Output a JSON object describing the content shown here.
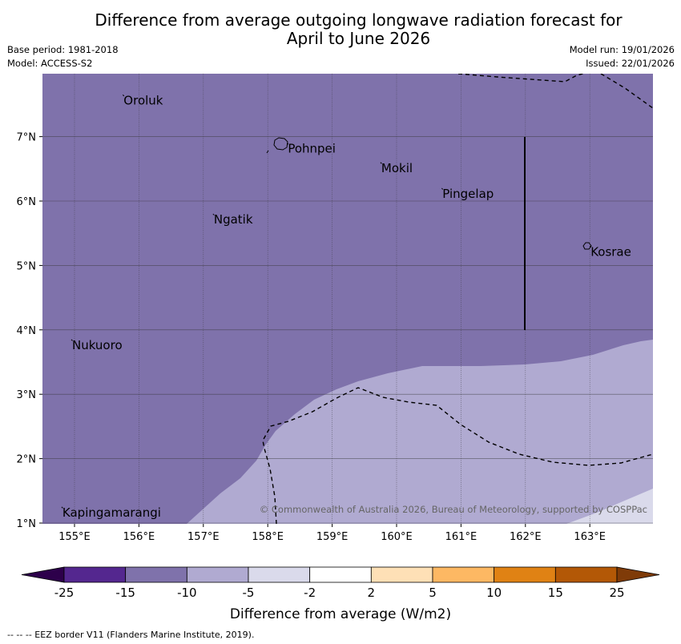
{
  "title": {
    "line1": "Difference from average outgoing longwave radiation forecast for",
    "line2": "April to June 2026"
  },
  "meta": {
    "base_period": "Base period: 1981-2018",
    "model": "Model: ACCESS-S2",
    "model_run": "Model run: 19/01/2026",
    "issued": "Issued: 22/01/2026"
  },
  "map": {
    "lon_ticks": [
      {
        "value": 155,
        "label": "155°E"
      },
      {
        "value": 156,
        "label": "156°E"
      },
      {
        "value": 157,
        "label": "157°E"
      },
      {
        "value": 158,
        "label": "158°E"
      },
      {
        "value": 159,
        "label": "159°E"
      },
      {
        "value": 160,
        "label": "160°E"
      },
      {
        "value": 161,
        "label": "161°E"
      },
      {
        "value": 162,
        "label": "162°E"
      },
      {
        "value": 163,
        "label": "163°E"
      }
    ],
    "lat_ticks": [
      {
        "value": 7,
        "label": "7°N"
      },
      {
        "value": 6,
        "label": "6°N"
      },
      {
        "value": 5,
        "label": "5°N"
      },
      {
        "value": 4,
        "label": "4°N"
      },
      {
        "value": 3,
        "label": "3°N"
      },
      {
        "value": 2,
        "label": "2°N"
      },
      {
        "value": 1,
        "label": "1°N"
      }
    ],
    "places": [
      {
        "name": "Oroluk",
        "lon": 155.75,
        "lat": 7.65
      },
      {
        "name": "Pohnpei",
        "lon": 158.3,
        "lat": 6.9
      },
      {
        "name": "Mokil",
        "lon": 159.75,
        "lat": 6.6
      },
      {
        "name": "Pingelap",
        "lon": 160.7,
        "lat": 6.2
      },
      {
        "name": "Ngatik",
        "lon": 157.15,
        "lat": 5.8
      },
      {
        "name": "Kosrae",
        "lon": 163.0,
        "lat": 5.3
      },
      {
        "name": "Nukuoro",
        "lon": 154.95,
        "lat": 3.85
      },
      {
        "name": "Kapingamarangi",
        "lon": 154.8,
        "lat": 1.25
      }
    ],
    "copyright": "© Commonwealth of Australia 2026, Bureau of Meteorology, supported by COSPPac"
  },
  "legend": {
    "bins": [
      {
        "color": "#54278f"
      },
      {
        "color": "#7f72ab"
      },
      {
        "color": "#b0aad1"
      },
      {
        "color": "#dadaeb"
      },
      {
        "color": "#ffffff"
      },
      {
        "color": "#fee0b6"
      },
      {
        "color": "#fdb863"
      },
      {
        "color": "#e08214"
      },
      {
        "color": "#b35806"
      }
    ],
    "under_color": "#2d004b",
    "over_color": "#7f3b08",
    "tick_labels": [
      "-25",
      "-15",
      "-10",
      "-5",
      "-2",
      "2",
      "5",
      "10",
      "15",
      "25"
    ],
    "label": "Difference from average (W/m2)"
  },
  "footer": "--  --  -- EEZ border V11 (Flanders Marine Institute, 2019)."
}
